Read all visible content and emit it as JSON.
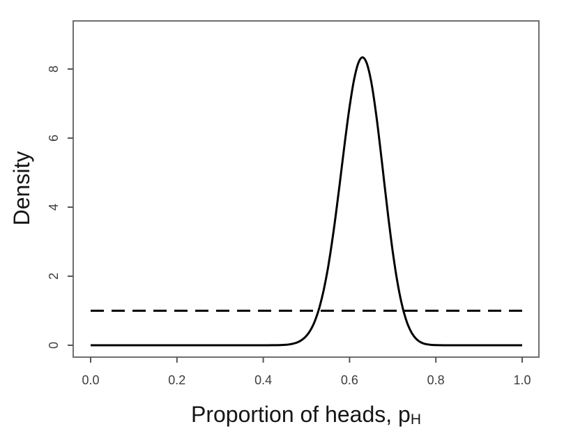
{
  "chart_data": {
    "type": "line",
    "title": "",
    "xlabel": "Proportion of heads, p",
    "xlabel_subscript": "H",
    "ylabel": "Density",
    "xlim": [
      0,
      1
    ],
    "ylim": [
      0,
      8.4
    ],
    "grid": false,
    "legend_position": "none",
    "frame_color": "#6e6e6e",
    "tick_color": "#565656",
    "tick_label_color": "#3d3d3d",
    "axis_title_color": "#161616",
    "line_color": "#000000",
    "x_ticks": [
      {
        "value": 0.0,
        "label": "0.0"
      },
      {
        "value": 0.2,
        "label": "0.2"
      },
      {
        "value": 0.4,
        "label": "0.4"
      },
      {
        "value": 0.6,
        "label": "0.6"
      },
      {
        "value": 0.8,
        "label": "0.8"
      },
      {
        "value": 1.0,
        "label": "1.0"
      }
    ],
    "y_ticks": [
      {
        "value": 0,
        "label": "0"
      },
      {
        "value": 2,
        "label": "2"
      },
      {
        "value": 4,
        "label": "4"
      },
      {
        "value": 6,
        "label": "6"
      },
      {
        "value": 8,
        "label": "8"
      }
    ],
    "series": [
      {
        "name": "posterior-density-curve",
        "line_style": "solid",
        "line_width": 3,
        "peak": {
          "x": 0.63,
          "y": 8.34
        },
        "points": [
          [
            0.0,
            0
          ],
          [
            0.05,
            0
          ],
          [
            0.1,
            0
          ],
          [
            0.15,
            0
          ],
          [
            0.2,
            0
          ],
          [
            0.25,
            0
          ],
          [
            0.3,
            0
          ],
          [
            0.35,
            0
          ],
          [
            0.4,
            0.0002
          ],
          [
            0.42,
            0.0011
          ],
          [
            0.44,
            0.0057
          ],
          [
            0.45,
            0.0122
          ],
          [
            0.46,
            0.0246
          ],
          [
            0.47,
            0.0478
          ],
          [
            0.48,
            0.0891
          ],
          [
            0.49,
            0.159
          ],
          [
            0.5,
            0.273
          ],
          [
            0.51,
            0.45
          ],
          [
            0.52,
            0.713
          ],
          [
            0.53,
            1.087
          ],
          [
            0.54,
            1.593
          ],
          [
            0.55,
            2.244
          ],
          [
            0.56,
            3.04
          ],
          [
            0.57,
            3.96
          ],
          [
            0.58,
            4.959
          ],
          [
            0.59,
            5.969
          ],
          [
            0.6,
            6.901
          ],
          [
            0.61,
            7.664
          ],
          [
            0.62,
            8.163
          ],
          [
            0.63,
            8.34
          ],
          [
            0.64,
            8.161
          ],
          [
            0.65,
            7.644
          ],
          [
            0.66,
            6.842
          ],
          [
            0.67,
            5.847
          ],
          [
            0.68,
            4.762
          ],
          [
            0.69,
            3.691
          ],
          [
            0.7,
            2.716
          ],
          [
            0.71,
            1.894
          ],
          [
            0.72,
            1.248
          ],
          [
            0.73,
            0.774
          ],
          [
            0.74,
            0.452
          ],
          [
            0.75,
            0.246
          ],
          [
            0.76,
            0.125
          ],
          [
            0.77,
            0.059
          ],
          [
            0.78,
            0.026
          ],
          [
            0.79,
            0.01
          ],
          [
            0.8,
            0.004
          ],
          [
            0.82,
            0.001
          ],
          [
            0.85,
            0
          ],
          [
            0.9,
            0
          ],
          [
            0.95,
            0
          ],
          [
            1.0,
            0
          ]
        ]
      },
      {
        "name": "prior-density-line",
        "line_style": "dashed",
        "line_width": 3,
        "points": [
          [
            0,
            1
          ],
          [
            1,
            1
          ]
        ]
      }
    ]
  }
}
